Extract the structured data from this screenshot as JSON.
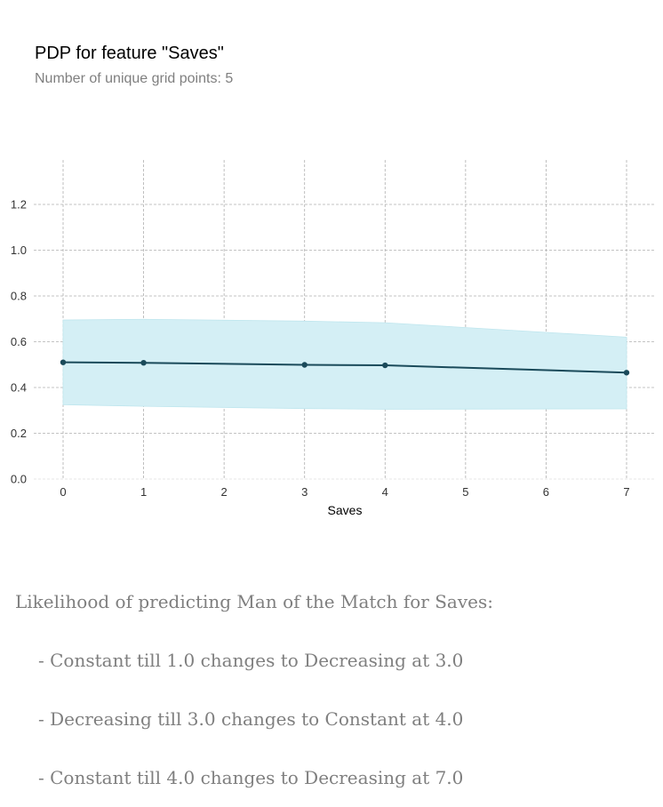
{
  "chart_data": {
    "type": "line",
    "title": "PDP for feature \"Saves\"",
    "subtitle": "Number of unique grid points: 5",
    "xlabel": "Saves",
    "ylabel": "",
    "xlim": [
      0,
      7
    ],
    "ylim": [
      0,
      1.2
    ],
    "xticks": [
      0,
      1,
      2,
      3,
      4,
      5,
      6,
      7
    ],
    "yticks": [
      0.0,
      0.2,
      0.4,
      0.6,
      0.8,
      1.0,
      1.2
    ],
    "ytick_labels": [
      "0.0",
      "0.2",
      "0.4",
      "0.6",
      "0.8",
      "1.0",
      "1.2"
    ],
    "grid": true,
    "series": [
      {
        "x": [
          0,
          1,
          3,
          4,
          7
        ],
        "y": [
          0.51,
          0.508,
          0.499,
          0.497,
          0.465
        ],
        "lower": [
          0.325,
          0.318,
          0.308,
          0.305,
          0.307
        ],
        "upper": [
          0.695,
          0.698,
          0.69,
          0.683,
          0.62
        ],
        "color": "#1a4a5a",
        "band_color": "#d4eff5"
      }
    ]
  },
  "summary": {
    "heading": "Likelihood of predicting Man of the Match for Saves:",
    "items": [
      "- Constant till 1.0 changes to Decreasing at 3.0",
      "- Decreasing till 3.0 changes to Constant at 4.0",
      "- Constant till 4.0 changes to Decreasing at 7.0"
    ]
  }
}
